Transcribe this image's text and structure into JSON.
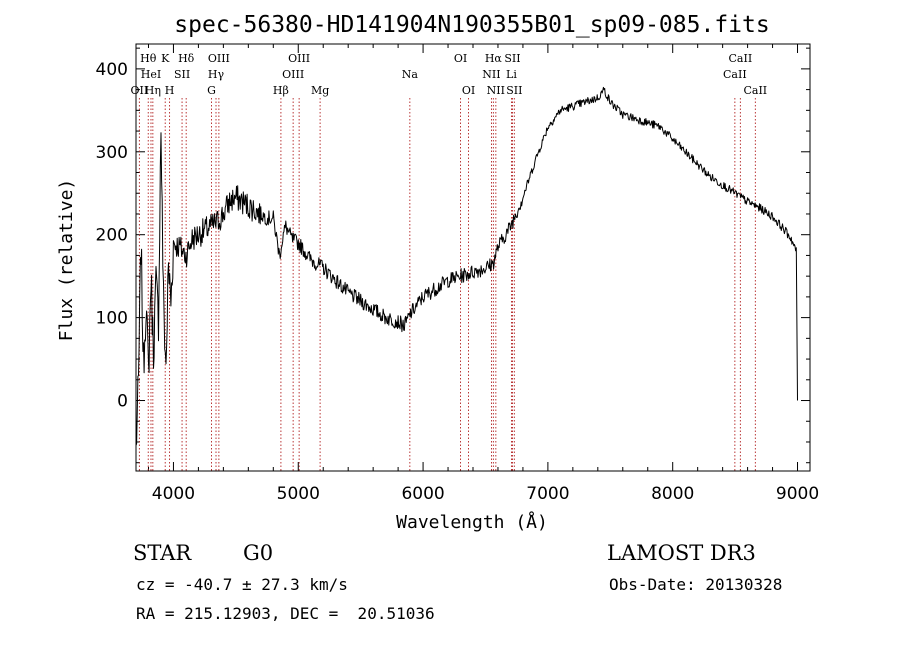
{
  "chart_data": {
    "type": "line",
    "title": "spec-56380-HD141904N190355B01_sp09-085.fits",
    "xlabel": "Wavelength (Å)",
    "ylabel": "Flux (relative)",
    "xlim": [
      3700,
      9100
    ],
    "ylim": [
      -85,
      430
    ],
    "xticks": [
      4000,
      5000,
      6000,
      7000,
      8000,
      9000
    ],
    "yticks": [
      0,
      100,
      200,
      300,
      400
    ],
    "grid": false,
    "series": [
      {
        "name": "flux",
        "x": [
          3700,
          3720,
          3740,
          3760,
          3780,
          3800,
          3820,
          3840,
          3860,
          3880,
          3900,
          3920,
          3940,
          3960,
          3980,
          4000,
          4050,
          4100,
          4150,
          4200,
          4250,
          4300,
          4350,
          4400,
          4450,
          4500,
          4550,
          4600,
          4650,
          4700,
          4750,
          4800,
          4850,
          4880,
          4900,
          4950,
          5000,
          5050,
          5100,
          5150,
          5200,
          5300,
          5400,
          5500,
          5600,
          5700,
          5800,
          5850,
          5900,
          5950,
          6000,
          6100,
          6200,
          6300,
          6400,
          6500,
          6560,
          6600,
          6700,
          6800,
          6900,
          7000,
          7100,
          7200,
          7300,
          7400,
          7450,
          7500,
          7600,
          7700,
          7800,
          7900,
          8000,
          8100,
          8200,
          8300,
          8400,
          8500,
          8600,
          8700,
          8800,
          8900,
          8950,
          8990,
          9000
        ],
        "y": [
          -60,
          20,
          190,
          40,
          120,
          30,
          150,
          60,
          140,
          100,
          330,
          120,
          40,
          160,
          120,
          190,
          185,
          175,
          195,
          200,
          205,
          210,
          215,
          225,
          240,
          245,
          240,
          235,
          230,
          225,
          220,
          220,
          175,
          200,
          210,
          195,
          190,
          180,
          170,
          165,
          160,
          145,
          130,
          120,
          110,
          100,
          95,
          90,
          105,
          115,
          125,
          135,
          145,
          150,
          155,
          160,
          165,
          185,
          210,
          245,
          290,
          330,
          350,
          355,
          360,
          365,
          375,
          360,
          345,
          340,
          335,
          330,
          315,
          300,
          285,
          270,
          260,
          250,
          240,
          232,
          222,
          205,
          195,
          180,
          0
        ]
      }
    ],
    "spectral_lines": [
      {
        "label": "Hθ",
        "x": 3798,
        "row": 1
      },
      {
        "label": "HeI",
        "x": 3820,
        "row": 2
      },
      {
        "label": "OII",
        "x": 3727,
        "row": 3
      },
      {
        "label": "Hη",
        "x": 3835,
        "row": 3
      },
      {
        "label": "K",
        "x": 3934,
        "row": 1
      },
      {
        "label": "SII",
        "x": 4069,
        "row": 2
      },
      {
        "label": "H",
        "x": 3969,
        "row": 3
      },
      {
        "label": "Hδ",
        "x": 4102,
        "row": 1
      },
      {
        "label": "OIII",
        "x": 4364,
        "row": 1
      },
      {
        "label": "Hγ",
        "x": 4341,
        "row": 2
      },
      {
        "label": "G",
        "x": 4305,
        "row": 3
      },
      {
        "label": "OIII",
        "x": 5007,
        "row": 1
      },
      {
        "label": "OIII",
        "x": 4959,
        "row": 2
      },
      {
        "label": "Hβ",
        "x": 4861,
        "row": 3
      },
      {
        "label": "Mg",
        "x": 5175,
        "row": 3
      },
      {
        "label": "Na",
        "x": 5894,
        "row": 2
      },
      {
        "label": "OI",
        "x": 6300,
        "row": 1
      },
      {
        "label": "OI",
        "x": 6364,
        "row": 3
      },
      {
        "label": "Hα",
        "x": 6563,
        "row": 1
      },
      {
        "label": "NII",
        "x": 6548,
        "row": 2
      },
      {
        "label": "NII",
        "x": 6583,
        "row": 3
      },
      {
        "label": "SII",
        "x": 6716,
        "row": 1
      },
      {
        "label": "Li",
        "x": 6708,
        "row": 2
      },
      {
        "label": "SII",
        "x": 6731,
        "row": 3
      },
      {
        "label": "CaII",
        "x": 8542,
        "row": 1
      },
      {
        "label": "CaII",
        "x": 8498,
        "row": 2
      },
      {
        "label": "CaII",
        "x": 8662,
        "row": 3
      }
    ]
  },
  "info": {
    "object_class": "STAR",
    "subclass": "G0",
    "survey": "LAMOST DR3",
    "redshift_line": "cz = -40.7 ± 27.3 km/s",
    "obs_date_line": "Obs-Date: 20130328",
    "coords_line": "RA = 215.12903, DEC =  20.51036"
  }
}
